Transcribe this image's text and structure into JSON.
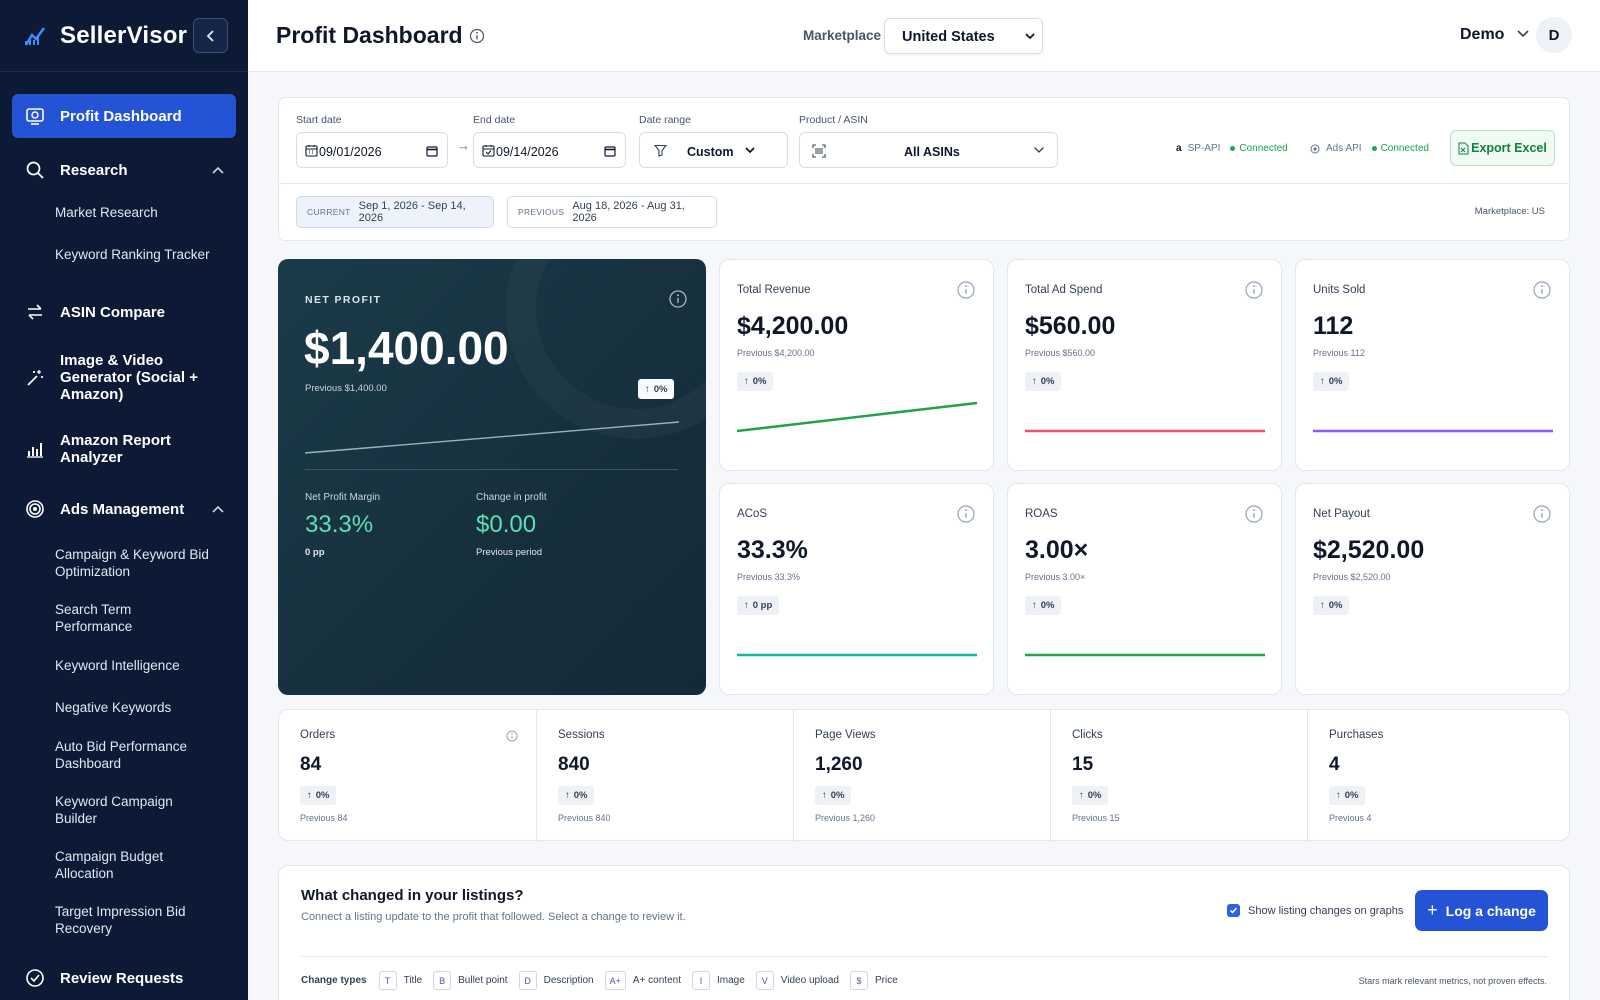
{
  "sidebar": {
    "brand": "SellerVisor",
    "items": [
      {
        "label": "Profit Dashboard"
      },
      {
        "label": "Research"
      },
      {
        "label": "Market Research"
      },
      {
        "label": "Keyword Ranking Tracker"
      },
      {
        "label": "ASIN Compare"
      },
      {
        "label": "Image & Video Generator (Social + Amazon)"
      },
      {
        "label": "Amazon Report Analyzer"
      },
      {
        "label": "Ads Management"
      },
      {
        "label": "Campaign & Keyword Bid Optimization"
      },
      {
        "label": "Search Term Performance"
      },
      {
        "label": "Keyword Intelligence"
      },
      {
        "label": "Negative Keywords"
      },
      {
        "label": "Auto Bid Performance Dashboard"
      },
      {
        "label": "Keyword Campaign Builder"
      },
      {
        "label": "Campaign Budget Allocation"
      },
      {
        "label": "Target Impression Bid Recovery"
      },
      {
        "label": "Review Requests"
      }
    ]
  },
  "header": {
    "title": "Profit Dashboard",
    "marketplace_label": "Marketplace",
    "marketplace_value": "United States",
    "user_name": "Demo",
    "avatar_initial": "D"
  },
  "filters": {
    "start_label": "Start date",
    "start_value": "09/01/2026",
    "end_label": "End date",
    "end_value": "09/14/2026",
    "arrow": "→",
    "range_label": "Date range",
    "range_value": "Custom",
    "product_label": "Product / ASIN",
    "product_value": "All ASINs",
    "sp_api": "SP-API",
    "sp_status": "Connected",
    "ads_api": "Ads API",
    "ads_status": "Connected",
    "export": "Export Excel",
    "current_tag": "CURRENT",
    "current_range": "Sep 1, 2026 - Sep 14, 2026",
    "previous_tag": "PREVIOUS",
    "previous_range": "Aug 18, 2026 - Aug 31, 2026",
    "marketplace_note": "Marketplace: US"
  },
  "net_profit": {
    "label": "NET PROFIT",
    "value": "$1,400.00",
    "previous": "Previous $1,400.00",
    "change": "0%",
    "margin_label": "Net Profit Margin",
    "margin_value": "33.3%",
    "margin_note": "0 pp",
    "change_label": "Change in profit",
    "change_value": "$0.00",
    "change_note": "Previous period"
  },
  "metrics": [
    {
      "label": "Total Revenue",
      "value": "$4,200.00",
      "previous": "Previous $4,200.00",
      "change": "0%",
      "color": "#22a34a"
    },
    {
      "label": "Total Ad Spend",
      "value": "$560.00",
      "previous": "Previous $560.00",
      "change": "0%",
      "color": "#f0526a"
    },
    {
      "label": "Units Sold",
      "value": "112",
      "previous": "Previous 112",
      "change": "0%",
      "color": "#8b5cf6"
    },
    {
      "label": "ACoS",
      "value": "33.3%",
      "previous": "Previous 33.3%",
      "change": "0 pp",
      "color": "#14b8a6"
    },
    {
      "label": "ROAS",
      "value": "3.00×",
      "previous": "Previous 3.00×",
      "change": "0%",
      "color": "#22a34a"
    },
    {
      "label": "Net Payout",
      "value": "$2,520.00",
      "previous": "Previous $2,520.00",
      "change": "0%",
      "color": "#94a3b8"
    }
  ],
  "stats": [
    {
      "label": "Orders",
      "value": "84",
      "change": "0%",
      "previous": "Previous 84"
    },
    {
      "label": "Sessions",
      "value": "840",
      "change": "0%",
      "previous": "Previous 840"
    },
    {
      "label": "Page Views",
      "value": "1,260",
      "change": "0%",
      "previous": "Previous 1,260"
    },
    {
      "label": "Clicks",
      "value": "15",
      "change": "0%",
      "previous": "Previous 15"
    },
    {
      "label": "Purchases",
      "value": "4",
      "change": "0%",
      "previous": "Previous 4"
    }
  ],
  "listings": {
    "title": "What changed in your listings?",
    "subtitle": "Connect a listing update to the profit that followed. Select a change to review it.",
    "show_changes": "Show listing changes on graphs",
    "log_button": "Log a change",
    "types_label": "Change types",
    "types": [
      {
        "badge": "T",
        "name": "Title"
      },
      {
        "badge": "B",
        "name": "Bullet point"
      },
      {
        "badge": "D",
        "name": "Description"
      },
      {
        "badge": "A+",
        "name": "A+ content"
      },
      {
        "badge": "I",
        "name": "Image"
      },
      {
        "badge": "V",
        "name": "Video upload"
      },
      {
        "badge": "$",
        "name": "Price"
      }
    ],
    "stars_note": "Stars mark relevant metrics, not proven effects."
  }
}
